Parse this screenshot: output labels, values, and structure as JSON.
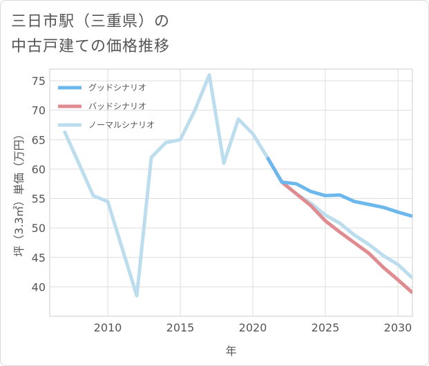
{
  "title": {
    "line1": "三日市駅（三重県）の",
    "line2": "中古戸建ての価格推移"
  },
  "chart_data": {
    "type": "line",
    "xlabel": "年",
    "ylabel": "坪（3.3㎡）単価（万円）",
    "xlim": [
      2006,
      2031
    ],
    "ylim": [
      35,
      77
    ],
    "x_ticks": [
      2010,
      2015,
      2020,
      2025,
      2030
    ],
    "y_ticks": [
      40,
      45,
      50,
      55,
      60,
      65,
      70,
      75
    ],
    "grid": true,
    "legend_position": "top-left",
    "series": [
      {
        "name": "グッドシナリオ",
        "color": "#6cb8ec",
        "x": [
          2021,
          2022,
          2023,
          2024,
          2025,
          2026,
          2027,
          2028,
          2029,
          2030,
          2031
        ],
        "values": [
          62.0,
          57.8,
          57.5,
          56.2,
          55.5,
          55.6,
          54.5,
          54.0,
          53.5,
          52.7,
          52.0
        ]
      },
      {
        "name": "バッドシナリオ",
        "color": "#e08b8f",
        "x": [
          2021,
          2022,
          2023,
          2024,
          2025,
          2026,
          2027,
          2028,
          2029,
          2030,
          2031
        ],
        "values": [
          62.0,
          57.8,
          55.8,
          53.8,
          51.2,
          49.3,
          47.5,
          45.7,
          43.3,
          41.2,
          39.0
        ]
      },
      {
        "name": "ノーマルシナリオ",
        "color": "#bcdded",
        "x": [
          2007,
          2008,
          2009,
          2010,
          2011,
          2012,
          2013,
          2014,
          2015,
          2016,
          2017,
          2018,
          2019,
          2020,
          2021,
          2022,
          2023,
          2024,
          2025,
          2026,
          2027,
          2028,
          2029,
          2030,
          2031
        ],
        "values": [
          66.5,
          61.0,
          55.5,
          54.5,
          46.5,
          38.5,
          62.0,
          64.5,
          65.0,
          70.0,
          76.0,
          61.0,
          68.5,
          66.0,
          62.0,
          57.8,
          55.8,
          54.2,
          52.2,
          50.8,
          48.8,
          47.2,
          45.3,
          43.8,
          41.5
        ]
      }
    ]
  }
}
